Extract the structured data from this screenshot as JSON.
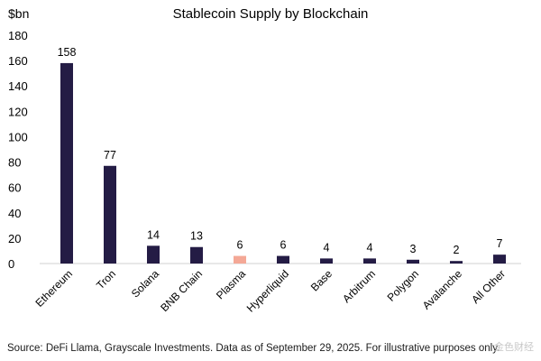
{
  "chart_data": {
    "type": "bar",
    "title": "Stablecoin Supply by Blockchain",
    "ylabel": "$bn",
    "xlabel": "",
    "ylim": [
      0,
      180
    ],
    "yticks": [
      0,
      20,
      40,
      60,
      80,
      100,
      120,
      140,
      160,
      180
    ],
    "grid": false,
    "categories": [
      "Ethereum",
      "Tron",
      "Solana",
      "BNB Chain",
      "Plasma",
      "Hyperliquid",
      "Base",
      "Arbitrum",
      "Polygon",
      "Avalanche",
      "All Other"
    ],
    "values": [
      158,
      77,
      14,
      13,
      6,
      6,
      4,
      4,
      3,
      2,
      7
    ],
    "bar_color": "#241c45",
    "highlight_category": "Plasma",
    "highlight_color": "#f4a896"
  },
  "source_text": "Source: DeFi Llama, Grayscale Investments. Data as of September 29, 2025. For illustrative purposes only.",
  "watermark_text": "金色财经"
}
